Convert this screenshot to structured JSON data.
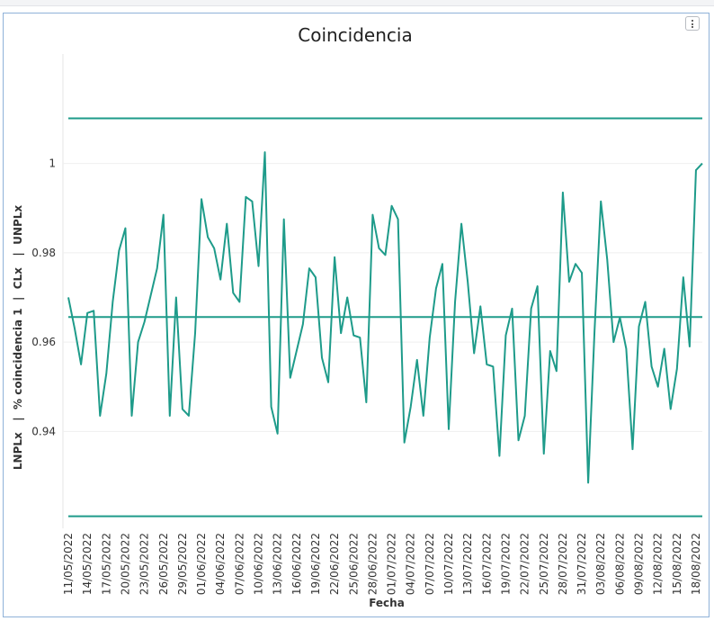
{
  "menu": {
    "icon": "vertical-dots-icon"
  },
  "chart_data": {
    "type": "line",
    "title": "Coincidencia",
    "xlabel": "Fecha",
    "ylabel": "LNPLx   |  % coincidencia 1  |  CLx   |  UNPLx",
    "ylim": [
      0.9183,
      1.0245
    ],
    "yticks": [
      0.94,
      0.96,
      0.98,
      1
    ],
    "ytick_labels": [
      "0.94",
      "0.96",
      "0.98",
      "1"
    ],
    "grid": true,
    "color": "#1e9b8a",
    "x_tick_labels": [
      "11/05/2022",
      "14/05/2022",
      "17/05/2022",
      "20/05/2022",
      "23/05/2022",
      "26/05/2022",
      "29/05/2022",
      "01/06/2022",
      "04/06/2022",
      "07/06/2022",
      "10/06/2022",
      "13/06/2022",
      "16/06/2022",
      "19/06/2022",
      "22/06/2022",
      "25/06/2022",
      "28/06/2022",
      "01/07/2022",
      "04/07/2022",
      "07/07/2022",
      "10/07/2022",
      "13/07/2022",
      "16/07/2022",
      "19/07/2022",
      "22/07/2022",
      "25/07/2022",
      "28/07/2022",
      "31/07/2022",
      "03/08/2022",
      "06/08/2022",
      "09/08/2022",
      "12/08/2022",
      "15/08/2022",
      "18/08/2022"
    ],
    "start_date": "11/05/2022",
    "end_date": "19/08/2022",
    "series": [
      {
        "name": "UNPLx",
        "values_constant": 1.0101
      },
      {
        "name": "CLx",
        "values_constant": 0.9656
      },
      {
        "name": "LNPLx",
        "values_constant": 0.921
      },
      {
        "name": "% coincidencia 1",
        "values": [
          0.97,
          0.963,
          0.955,
          0.9665,
          0.967,
          0.9435,
          0.953,
          0.969,
          0.9805,
          0.9855,
          0.9435,
          0.96,
          0.9645,
          0.9705,
          0.9765,
          0.9885,
          0.9435,
          0.97,
          0.945,
          0.9435,
          0.962,
          0.992,
          0.9835,
          0.981,
          0.974,
          0.9865,
          0.971,
          0.969,
          0.9925,
          0.9915,
          0.977,
          1.0025,
          0.9455,
          0.9395,
          0.9875,
          0.952,
          0.958,
          0.964,
          0.9765,
          0.9745,
          0.9565,
          0.951,
          0.979,
          0.962,
          0.97,
          0.9615,
          0.961,
          0.9465,
          0.9885,
          0.981,
          0.9795,
          0.9905,
          0.9875,
          0.9375,
          0.9455,
          0.956,
          0.9435,
          0.961,
          0.972,
          0.9775,
          0.9405,
          0.969,
          0.9865,
          0.9735,
          0.9575,
          0.968,
          0.955,
          0.9545,
          0.9345,
          0.9615,
          0.9675,
          0.938,
          0.9435,
          0.9675,
          0.9725,
          0.935,
          0.958,
          0.9535,
          0.9935,
          0.9735,
          0.9775,
          0.9755,
          0.9285,
          0.9625,
          0.9915,
          0.9785,
          0.96,
          0.9655,
          0.9585,
          0.936,
          0.9635,
          0.969,
          0.9545,
          0.95,
          0.9585,
          0.945,
          0.954,
          0.9745,
          0.959,
          0.9985,
          1.0
        ]
      }
    ]
  }
}
